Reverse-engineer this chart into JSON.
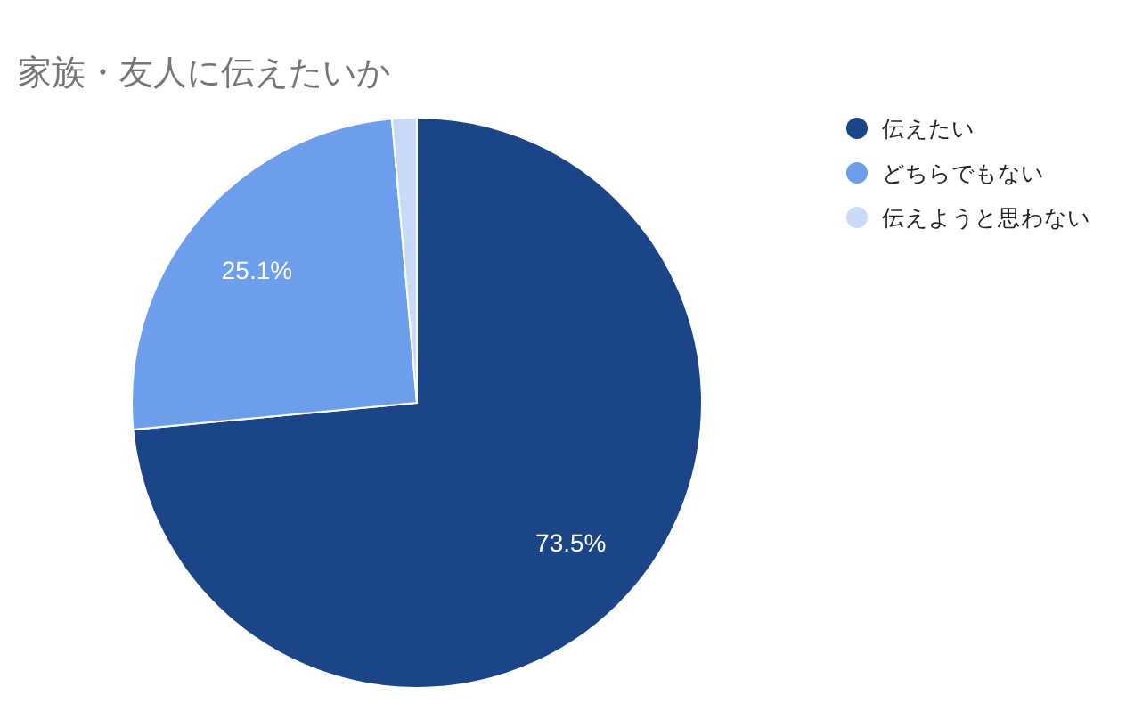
{
  "chart_data": {
    "type": "pie",
    "title": "家族・友人に伝えたいか",
    "categories": [
      "伝えたい",
      "どちらでもない",
      "伝えようと思わない"
    ],
    "values": [
      73.5,
      25.1,
      1.4
    ],
    "colors": [
      "#1c4587",
      "#6d9eeb",
      "#c9daf8"
    ],
    "value_labels": [
      "73.5%",
      "25.1%",
      null
    ],
    "legend": "right"
  }
}
